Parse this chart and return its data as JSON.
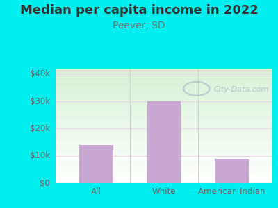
{
  "title": "Median per capita income in 2022",
  "subtitle": "Peever, SD",
  "categories": [
    "All",
    "White",
    "American Indian"
  ],
  "values": [
    14000,
    30000,
    9000
  ],
  "bar_color": "#c9a8d4",
  "background_outer": "#00efef",
  "background_inner_top_left": "#d8f0d8",
  "background_inner_bottom_right": "#ffffff",
  "title_fontsize": 13,
  "subtitle_fontsize": 10,
  "title_color": "#333333",
  "subtitle_color": "#777777",
  "tick_label_color": "#666666",
  "ylim": [
    0,
    42000
  ],
  "yticks": [
    0,
    10000,
    20000,
    30000,
    40000
  ],
  "ytick_labels": [
    "$0",
    "$10k",
    "$20k",
    "$30k",
    "$40k"
  ],
  "watermark": "City-Data.com",
  "watermark_color": "#b0b8c8",
  "grid_color": "#e8d8e8"
}
